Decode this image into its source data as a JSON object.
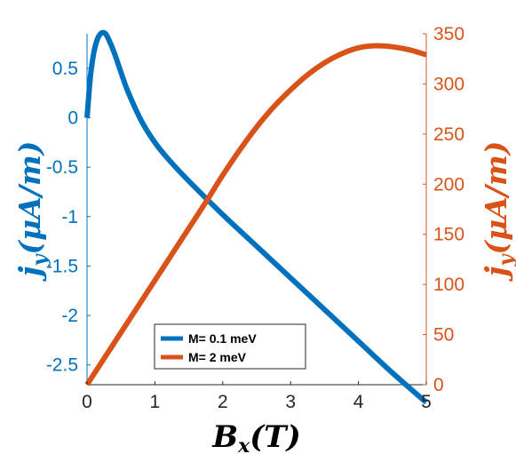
{
  "chart_data": {
    "type": "line",
    "xlabel": "B_x(T)",
    "ylabel_left": "j_y(μA/m)",
    "ylabel_right": "j_y(μA/m)",
    "xlim": [
      0,
      5
    ],
    "ylim_left": [
      -2.7,
      0.85
    ],
    "ylim_right": [
      0,
      350
    ],
    "x_ticks": [
      "0",
      "1",
      "2",
      "3",
      "4",
      "5"
    ],
    "x_tick_values": [
      0,
      1,
      2,
      3,
      4,
      5
    ],
    "y_left_ticks": [
      "0.5",
      "0",
      "-0.5",
      "-1",
      "-1.5",
      "-2",
      "-2.5"
    ],
    "y_left_tick_values": [
      0.5,
      0,
      -0.5,
      -1,
      -1.5,
      -2,
      -2.5
    ],
    "y_right_ticks": [
      "350",
      "300",
      "250",
      "200",
      "150",
      "100",
      "50",
      "0"
    ],
    "y_right_tick_values": [
      350,
      300,
      250,
      200,
      150,
      100,
      50,
      0
    ],
    "grid": false,
    "legend_placement": "bottom-center",
    "colors": {
      "left_axis": "#0072bd",
      "right_axis": "#d95319",
      "series_1": "#0072bd",
      "series_2": "#d95319"
    },
    "series": [
      {
        "name": "M= 0.1 meV",
        "axis": "left",
        "x": [
          0,
          0.05,
          0.1,
          0.15,
          0.2,
          0.25,
          0.3,
          0.4,
          0.5,
          0.6,
          0.8,
          1.0,
          1.2,
          1.5,
          2.0,
          2.5,
          3.0,
          3.5,
          4.0,
          4.5,
          5.0
        ],
        "y": [
          0.0,
          0.42,
          0.66,
          0.79,
          0.85,
          0.86,
          0.82,
          0.66,
          0.46,
          0.27,
          -0.03,
          -0.25,
          -0.42,
          -0.64,
          -0.98,
          -1.3,
          -1.62,
          -1.94,
          -2.26,
          -2.58,
          -2.88
        ]
      },
      {
        "name": "M= 2 meV",
        "axis": "right",
        "x": [
          0,
          0.25,
          0.5,
          0.75,
          1.0,
          1.25,
          1.5,
          1.75,
          2.0,
          2.25,
          2.5,
          2.75,
          3.0,
          3.25,
          3.5,
          3.75,
          4.0,
          4.25,
          4.5,
          4.75,
          5.0
        ],
        "y": [
          0,
          26,
          52,
          78,
          104,
          130,
          156,
          182,
          209,
          234,
          257,
          277,
          294,
          309,
          321,
          330,
          336,
          338,
          337,
          334,
          329
        ]
      }
    ]
  }
}
